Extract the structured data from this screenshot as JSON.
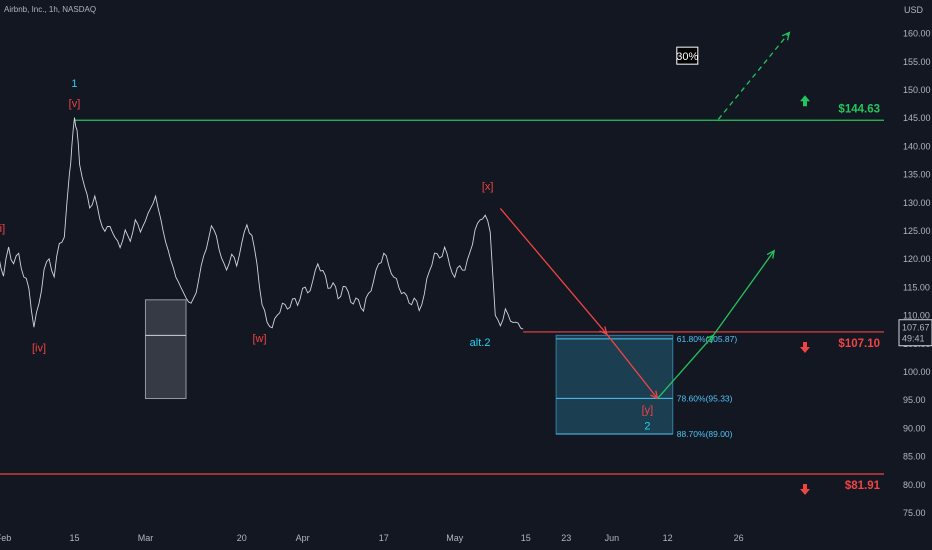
{
  "chart_data": {
    "type": "line",
    "title": "Airbnb, Inc., 1h, NASDAQ",
    "currency": "USD",
    "ylim": [
      72,
      169
    ],
    "y_ticks": [
      160,
      155,
      150,
      145,
      140,
      135,
      130,
      125,
      120,
      115,
      110,
      105,
      100,
      95,
      90,
      85,
      80,
      75
    ],
    "y_tick_labels": [
      "160.00",
      "155.00",
      "150.00",
      "145.00",
      "140.00",
      "135.00",
      "130.00",
      "125.00",
      "120.00",
      "115.00",
      "110.00",
      "105.00",
      "100.00",
      "95.00",
      "90.00",
      "85.00",
      "80.00",
      "75.00"
    ],
    "x_ticks": [
      {
        "label": "Feb",
        "day": 0
      },
      {
        "label": "15",
        "day": 14
      },
      {
        "label": "Mar",
        "day": 28
      },
      {
        "label": "20",
        "day": 47
      },
      {
        "label": "Apr",
        "day": 59
      },
      {
        "label": "17",
        "day": 75
      },
      {
        "label": "May",
        "day": 89
      },
      {
        "label": "15",
        "day": 103
      },
      {
        "label": "23",
        "day": 111
      },
      {
        "label": "Jun",
        "day": 120
      },
      {
        "label": "12",
        "day": 131
      },
      {
        "label": "26",
        "day": 145
      }
    ],
    "price_path": [
      [
        -3,
        110
      ],
      [
        -2,
        118
      ],
      [
        -1,
        121
      ],
      [
        0,
        117
      ],
      [
        1,
        122
      ],
      [
        2,
        119
      ],
      [
        3,
        121
      ],
      [
        4,
        117
      ],
      [
        5,
        115
      ],
      [
        6,
        108
      ],
      [
        7,
        112
      ],
      [
        8,
        118
      ],
      [
        9,
        120
      ],
      [
        10,
        117
      ],
      [
        11,
        123
      ],
      [
        12,
        124
      ],
      [
        13,
        135
      ],
      [
        13.5,
        140
      ],
      [
        14,
        145
      ],
      [
        14.5,
        143
      ],
      [
        15,
        137
      ],
      [
        16,
        133
      ],
      [
        17,
        129
      ],
      [
        18,
        131
      ],
      [
        19,
        127
      ],
      [
        20,
        125
      ],
      [
        21,
        126
      ],
      [
        22,
        124
      ],
      [
        23,
        122
      ],
      [
        24,
        125
      ],
      [
        25,
        123
      ],
      [
        26,
        127
      ],
      [
        27,
        125
      ],
      [
        28,
        127
      ],
      [
        29,
        129
      ],
      [
        30,
        131
      ],
      [
        31,
        127
      ],
      [
        32,
        123
      ],
      [
        33,
        120
      ],
      [
        34,
        117
      ],
      [
        35,
        115
      ],
      [
        36,
        113
      ],
      [
        37,
        112
      ],
      [
        38,
        114
      ],
      [
        39,
        119
      ],
      [
        40,
        122
      ],
      [
        41,
        126
      ],
      [
        42,
        124
      ],
      [
        43,
        120
      ],
      [
        44,
        118
      ],
      [
        45,
        121
      ],
      [
        46,
        119
      ],
      [
        47,
        123
      ],
      [
        48,
        126
      ],
      [
        49,
        124
      ],
      [
        50,
        119
      ],
      [
        51,
        112
      ],
      [
        52,
        109
      ],
      [
        53,
        108
      ],
      [
        54,
        110
      ],
      [
        55,
        112
      ],
      [
        56,
        111
      ],
      [
        57,
        113
      ],
      [
        58,
        112
      ],
      [
        59,
        115
      ],
      [
        60,
        114
      ],
      [
        61,
        116
      ],
      [
        62,
        119
      ],
      [
        63,
        118
      ],
      [
        64,
        115
      ],
      [
        65,
        116
      ],
      [
        66,
        113
      ],
      [
        67,
        115
      ],
      [
        68,
        114
      ],
      [
        69,
        112
      ],
      [
        70,
        113
      ],
      [
        71,
        111
      ],
      [
        72,
        114
      ],
      [
        73,
        116
      ],
      [
        74,
        119
      ],
      [
        75,
        121
      ],
      [
        76,
        119
      ],
      [
        77,
        117
      ],
      [
        78,
        115
      ],
      [
        79,
        114
      ],
      [
        80,
        112
      ],
      [
        81,
        113
      ],
      [
        82,
        111
      ],
      [
        83,
        114
      ],
      [
        84,
        118
      ],
      [
        85,
        121
      ],
      [
        86,
        120
      ],
      [
        87,
        122
      ],
      [
        88,
        119
      ],
      [
        89,
        117
      ],
      [
        90,
        119
      ],
      [
        91,
        118
      ],
      [
        92,
        121
      ],
      [
        93,
        125
      ],
      [
        94,
        127
      ],
      [
        95,
        128
      ],
      [
        96,
        125
      ],
      [
        97,
        110
      ],
      [
        98,
        108
      ],
      [
        99,
        111
      ],
      [
        100,
        109
      ],
      [
        101,
        109
      ],
      [
        102,
        108
      ],
      [
        102.5,
        107.67
      ]
    ],
    "candles": [
      {
        "x": 42.5,
        "high": 112.5,
        "low": 96.5
      },
      {
        "x": 44,
        "high": 112.5,
        "low": 96.5
      }
    ],
    "gray_box": {
      "x0": 28,
      "x1": 36,
      "y0": 112.8,
      "y1": 95.3,
      "mid": 106.5
    },
    "target_zone": {
      "x0": 109,
      "x1": 132,
      "y_top": 106.5,
      "y_bot": 89.0,
      "levels": [
        {
          "price": 105.87,
          "label": "61.80%(105.87)"
        },
        {
          "price": 95.33,
          "label": "78.60%(95.33)"
        },
        {
          "price": 89.0,
          "label": "88.70%(89.00)"
        }
      ]
    },
    "horizontal_levels": [
      {
        "price": 144.63,
        "x0": 14,
        "label": "$144.63",
        "color": "#22c55e",
        "arrow": "up"
      },
      {
        "price": 107.1,
        "x0": 102.5,
        "label": "$107.10",
        "color": "#ef4444",
        "arrow": "down"
      },
      {
        "price": 81.91,
        "x0": -3,
        "label": "$81.91",
        "color": "#ef4444",
        "arrow": "down"
      }
    ],
    "red_path": [
      [
        98,
        129
      ],
      [
        119,
        106.7
      ],
      [
        129,
        95.3
      ]
    ],
    "green_path": [
      [
        129,
        95.3
      ],
      [
        140,
        106.5
      ],
      [
        152,
        121.5
      ]
    ],
    "green_dashed": [
      [
        141,
        144.8
      ],
      [
        155,
        160.2
      ]
    ],
    "wave_labels": [
      {
        "text": "1",
        "x": 14,
        "y": 150.5,
        "color": "#22d3ee"
      },
      {
        "text": "[v]",
        "x": 14,
        "y": 147,
        "color": "#ef4444"
      },
      {
        "text": "[iii]",
        "x": -1,
        "y": 124.8,
        "color": "#ef4444"
      },
      {
        "text": "[iv]",
        "x": 7,
        "y": 103.6,
        "color": "#ef4444"
      },
      {
        "text": "[w]",
        "x": 50.5,
        "y": 105.3,
        "color": "#ef4444"
      },
      {
        "text": "[x]",
        "x": 95.5,
        "y": 132.3,
        "color": "#ef4444"
      },
      {
        "text": "alt.2",
        "x": 94,
        "y": 104.6,
        "color": "#22d3ee"
      },
      {
        "text": "[y]",
        "x": 127,
        "y": 92.6,
        "color": "#ef4444"
      },
      {
        "text": "2",
        "x": 127,
        "y": 89.8,
        "color": "#22d3ee"
      }
    ],
    "percent_box": {
      "text": "30%",
      "x": 133,
      "y": 156
    },
    "price_tag": {
      "price": "107.67",
      "time": "49:41"
    }
  }
}
